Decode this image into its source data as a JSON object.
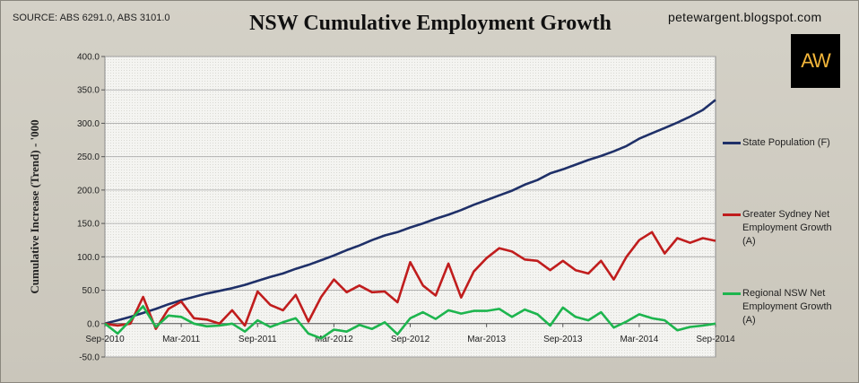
{
  "header": {
    "source": "SOURCE: ABS 6291.0, ABS 3101.0",
    "title": "NSW Cumulative Employment Growth",
    "blog": "petewargent.blogspot.com",
    "logo_text": "AW"
  },
  "chart_data": {
    "type": "line",
    "title": "NSW Cumulative Employment Growth",
    "ylabel": "Cumulative Increase (Trend) - '000",
    "xlabel": "",
    "ylim": [
      -50,
      400
    ],
    "yticks": [
      -50,
      0,
      50,
      100,
      150,
      200,
      250,
      300,
      350,
      400
    ],
    "ytick_labels": [
      "-50.0",
      "0.0",
      "50.0",
      "100.0",
      "150.0",
      "200.0",
      "250.0",
      "300.0",
      "350.0",
      "400.0"
    ],
    "x": [
      "Sep-2010",
      "Oct-2010",
      "Nov-2010",
      "Dec-2010",
      "Jan-2011",
      "Feb-2011",
      "Mar-2011",
      "Apr-2011",
      "May-2011",
      "Jun-2011",
      "Jul-2011",
      "Aug-2011",
      "Sep-2011",
      "Oct-2011",
      "Nov-2011",
      "Dec-2011",
      "Jan-2012",
      "Feb-2012",
      "Mar-2012",
      "Apr-2012",
      "May-2012",
      "Jun-2012",
      "Jul-2012",
      "Aug-2012",
      "Sep-2012",
      "Oct-2012",
      "Nov-2012",
      "Dec-2012",
      "Jan-2013",
      "Feb-2013",
      "Mar-2013",
      "Apr-2013",
      "May-2013",
      "Jun-2013",
      "Jul-2013",
      "Aug-2013",
      "Sep-2013",
      "Oct-2013",
      "Nov-2013",
      "Dec-2013",
      "Jan-2014",
      "Feb-2014",
      "Mar-2014",
      "Apr-2014",
      "May-2014",
      "Jun-2014",
      "Jul-2014",
      "Aug-2014",
      "Sep-2014"
    ],
    "x_tick_labels": [
      "Sep-2010",
      "Mar-2011",
      "Sep-2011",
      "Mar-2012",
      "Sep-2012",
      "Mar-2013",
      "Sep-2013",
      "Mar-2014",
      "Sep-2014"
    ],
    "legend_position": "right",
    "grid": true,
    "series": [
      {
        "name": "State Population (F)",
        "color": "#1f3068",
        "values": [
          0,
          5,
          10,
          16,
          22,
          29,
          35,
          40,
          45,
          49,
          53,
          58,
          64,
          70,
          75,
          82,
          88,
          95,
          102,
          110,
          117,
          125,
          132,
          137,
          144,
          150,
          157,
          163,
          170,
          178,
          185,
          192,
          199,
          208,
          215,
          225,
          231,
          238,
          245,
          251,
          258,
          266,
          277,
          285,
          293,
          301,
          310,
          320,
          335
        ]
      },
      {
        "name": "Greater Sydney Net Employment Growth (A)",
        "color": "#c01d1d",
        "values": [
          0,
          -3,
          0,
          40,
          -8,
          22,
          33,
          8,
          6,
          0,
          20,
          -3,
          48,
          28,
          20,
          43,
          3,
          40,
          66,
          47,
          57,
          47,
          48,
          32,
          92,
          57,
          42,
          90,
          39,
          78,
          98,
          113,
          108,
          96,
          94,
          80,
          94,
          80,
          75,
          94,
          66,
          100,
          125,
          137,
          105,
          128,
          121,
          128,
          124
        ]
      },
      {
        "name": "Regional NSW Net Employment Growth (A)",
        "color": "#1db54e",
        "values": [
          0,
          -15,
          5,
          26,
          -5,
          12,
          10,
          0,
          -4,
          -3,
          0,
          -12,
          5,
          -5,
          2,
          8,
          -15,
          -22,
          -9,
          -12,
          -2,
          -8,
          2,
          -16,
          8,
          17,
          7,
          20,
          15,
          19,
          19,
          22,
          10,
          21,
          14,
          -3,
          24,
          10,
          5,
          17,
          -6,
          3,
          14,
          8,
          5,
          -10,
          -5,
          -3,
          0
        ]
      }
    ]
  }
}
